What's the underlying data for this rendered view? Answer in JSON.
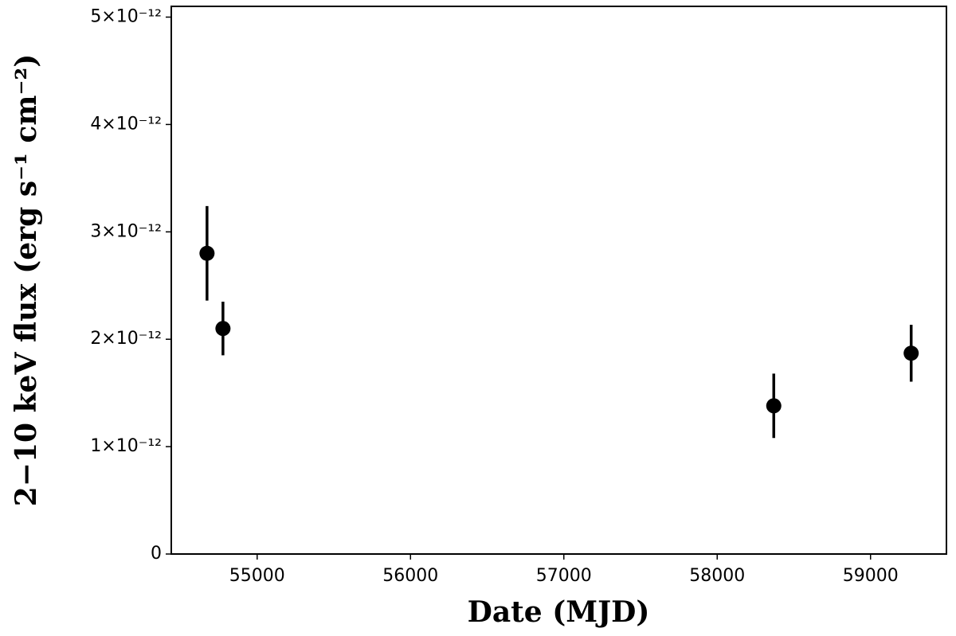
{
  "chart_data": {
    "type": "scatter",
    "xlabel": "Date (MJD)",
    "ylabel": "2−10 keV flux (erg s⁻¹ cm⁻²)",
    "x": [
      54673,
      54777,
      58369,
      59265
    ],
    "values": [
      2.8e-12,
      2.1e-12,
      1.38e-12,
      1.87e-12
    ],
    "errors": [
      4.4e-13,
      2.5e-13,
      3e-13,
      2.65e-13
    ],
    "color": "#000000",
    "xlim": [
      54440,
      59495
    ],
    "ylim": [
      0,
      5.1e-12
    ],
    "xticks": [
      55000,
      56000,
      57000,
      58000,
      59000
    ],
    "yticks": [
      0,
      {
        "value": 1e-12,
        "label": "1×10⁻¹²"
      },
      {
        "value": 2e-12,
        "label": "2×10⁻¹²"
      },
      {
        "value": 3e-12,
        "label": "3×10⁻¹²"
      },
      {
        "value": 4e-12,
        "label": "4×10⁻¹²"
      },
      {
        "value": 5e-12,
        "label": "5×10⁻¹²"
      }
    ]
  }
}
